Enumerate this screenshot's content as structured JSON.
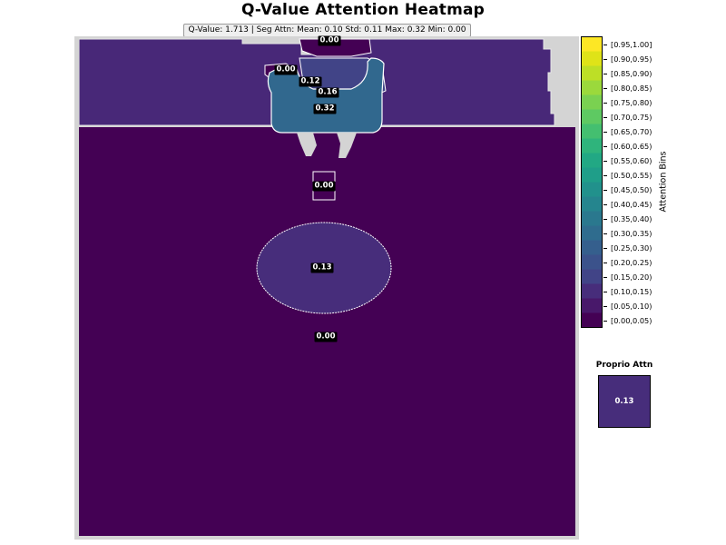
{
  "chart_data": {
    "type": "heatmap",
    "title": "Q-Value Attention Heatmap",
    "stats_text": "Q-Value: 1.713  |  Seg Attn: Mean: 0.10 Std: 0.11 Max: 0.32 Min: 0.00",
    "stats": {
      "q_value": 1.713,
      "mean": 0.1,
      "std": 0.11,
      "max": 0.32,
      "min": 0.0
    },
    "segments": [
      {
        "name": "top-mid",
        "value": 0.0,
        "color": "#440154",
        "label": "0.00"
      },
      {
        "name": "top-left-small",
        "value": 0.0,
        "color": "#440154",
        "label": "0.00"
      },
      {
        "name": "upper-band-a",
        "value": 0.12,
        "color": "#482878",
        "label": "0.12"
      },
      {
        "name": "upper-band-b",
        "value": 0.16,
        "color": "#414487",
        "label": "0.16"
      },
      {
        "name": "object-main",
        "value": 0.32,
        "color": "#31688e",
        "label": "0.32"
      },
      {
        "name": "small-box",
        "value": 0.0,
        "color": "#440154",
        "label": "0.00"
      },
      {
        "name": "ellipse",
        "value": 0.13,
        "color": "#472d7b",
        "label": "0.13"
      },
      {
        "name": "background",
        "value": 0.0,
        "color": "#440154",
        "label": "0.00"
      }
    ],
    "colorbar": {
      "label": "Attention Bins",
      "bins": [
        {
          "label": "[0.95,1.00]",
          "color": "#fde725"
        },
        {
          "label": "[0.90,0.95)",
          "color": "#dfe318"
        },
        {
          "label": "[0.85,0.90)",
          "color": "#bddf26"
        },
        {
          "label": "[0.80,0.85)",
          "color": "#9bd93c"
        },
        {
          "label": "[0.75,0.80)",
          "color": "#7ad151"
        },
        {
          "label": "[0.70,0.75)",
          "color": "#5ec962"
        },
        {
          "label": "[0.65,0.70)",
          "color": "#44bf70"
        },
        {
          "label": "[0.60,0.65)",
          "color": "#2fb47c"
        },
        {
          "label": "[0.55,0.60)",
          "color": "#22a884"
        },
        {
          "label": "[0.50,0.55)",
          "color": "#1f9e89"
        },
        {
          "label": "[0.45,0.50)",
          "color": "#21918c"
        },
        {
          "label": "[0.40,0.45)",
          "color": "#25858e"
        },
        {
          "label": "[0.35,0.40)",
          "color": "#2a788e"
        },
        {
          "label": "[0.30,0.35)",
          "color": "#2f6c8e"
        },
        {
          "label": "[0.25,0.30)",
          "color": "#355f8d"
        },
        {
          "label": "[0.20,0.25)",
          "color": "#3b528b"
        },
        {
          "label": "[0.15,0.20)",
          "color": "#414487"
        },
        {
          "label": "[0.10,0.15)",
          "color": "#472d7b"
        },
        {
          "label": "[0.05,0.10)",
          "color": "#48186a"
        },
        {
          "label": "[0.00,0.05)",
          "color": "#440154"
        }
      ]
    },
    "proprio": {
      "title": "Proprio Attn",
      "value": 0.13,
      "label": "0.13",
      "color": "#472d7b"
    }
  }
}
